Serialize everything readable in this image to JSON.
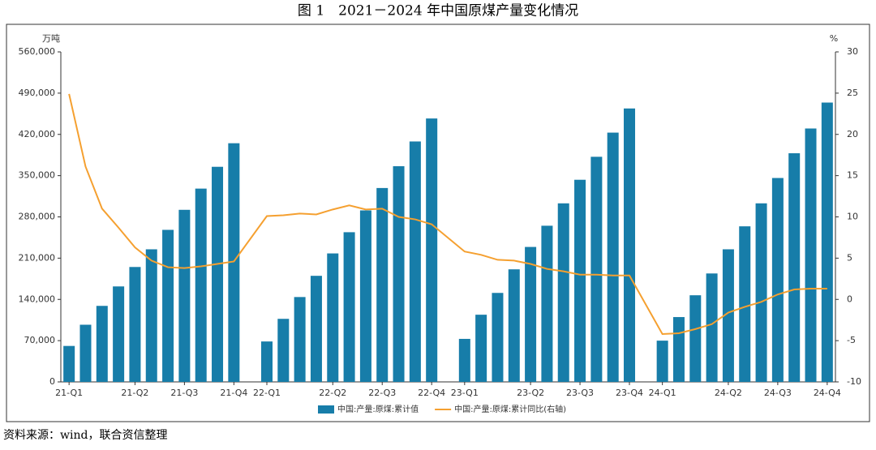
{
  "chart_data": {
    "type": "bar-line",
    "title": "图 1　2021－2024 年中国原煤产量变化情况",
    "y_unit": "万吨",
    "y2_unit": "%",
    "source": "资料来源：wind，联合资信整理",
    "categories": [
      "21-Q1",
      null,
      null,
      null,
      "21-Q2",
      null,
      null,
      "21-Q3",
      null,
      null,
      "21-Q4",
      null,
      "22-Q1",
      null,
      null,
      null,
      "22-Q2",
      null,
      null,
      "22-Q3",
      null,
      null,
      "22-Q4",
      null,
      "23-Q1",
      null,
      null,
      null,
      "23-Q2",
      null,
      null,
      "23-Q3",
      null,
      null,
      "23-Q4",
      null,
      "24-Q1",
      null,
      null,
      null,
      "24-Q2",
      null,
      null,
      "24-Q3",
      null,
      null,
      "24-Q4"
    ],
    "series": [
      {
        "name": "中国:产量:原煤:累计值",
        "type": "bar",
        "color": "#177da9",
        "axis": "y",
        "values": [
          61000,
          97000,
          129000,
          162000,
          195000,
          225000,
          258000,
          292000,
          328000,
          365000,
          405000,
          null,
          68600,
          107000,
          144000,
          180000,
          218000,
          254000,
          291000,
          329000,
          366000,
          408000,
          447000,
          null,
          73000,
          114000,
          151000,
          191000,
          229000,
          265000,
          303000,
          343000,
          382000,
          423000,
          464000,
          null,
          70000,
          110000,
          147000,
          184000,
          225000,
          264000,
          303000,
          346000,
          388000,
          430000,
          474000
        ]
      },
      {
        "name": "中国:产量:原煤:累计同比(右轴)",
        "type": "line",
        "color": "#f5a030",
        "axis": "y2",
        "values": [
          24.9,
          16.1,
          11.0,
          8.7,
          6.3,
          4.7,
          3.9,
          3.8,
          4.0,
          4.3,
          4.6,
          null,
          10.1,
          10.2,
          10.4,
          10.3,
          10.9,
          11.4,
          10.9,
          11.0,
          10.0,
          9.7,
          9.1,
          null,
          5.8,
          5.4,
          4.8,
          4.7,
          4.3,
          3.7,
          3.4,
          3.0,
          3.0,
          2.9,
          2.9,
          null,
          -4.2,
          -4.1,
          -3.6,
          -3.0,
          -1.6,
          -0.9,
          -0.3,
          0.6,
          1.2,
          1.3,
          1.3
        ]
      }
    ],
    "connect_gaps": true,
    "ylim": [
      0,
      560000
    ],
    "yticks": [
      0,
      {
        "value": 70000,
        "label": "70,000"
      },
      {
        "value": 140000,
        "label": "140,000"
      },
      {
        "value": 210000,
        "label": "210,000"
      },
      {
        "value": 280000,
        "label": "280,000"
      },
      {
        "value": 350000,
        "label": "350,000"
      },
      {
        "value": 420000,
        "label": "420,000"
      },
      {
        "value": 490000,
        "label": "490,000"
      },
      {
        "value": 560000,
        "label": "560,000"
      }
    ],
    "y2lim": [
      -10,
      30
    ],
    "y2ticks": [
      -10,
      -5,
      0,
      5,
      10,
      15,
      20,
      25,
      30
    ],
    "legend": "bottom"
  }
}
